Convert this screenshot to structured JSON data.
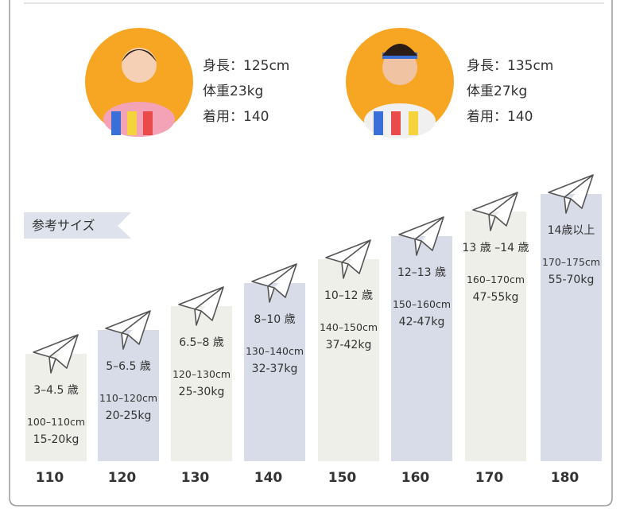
{
  "models": [
    {
      "height": "身長：125cm",
      "weight": "体重23kg",
      "size": "着用：140"
    },
    {
      "height": "身長：135cm",
      "weight": "体重27kg",
      "size": "着用：140"
    }
  ],
  "tag": "参考サイズ",
  "columns": [
    {
      "size": "110",
      "age": "3–4.5 歳",
      "height": "100–110cm",
      "weight": "15-20kg"
    },
    {
      "size": "120",
      "age": "5–6.5 歳",
      "height": "110–120cm",
      "weight": "20-25kg"
    },
    {
      "size": "130",
      "age": "6.5–8 歳",
      "height": "120–130cm",
      "weight": "25-30kg"
    },
    {
      "size": "140",
      "age": "8–10 歳",
      "height": "130–140cm",
      "weight": "32-37kg"
    },
    {
      "size": "150",
      "age": "10–12 歳",
      "height": "140–150cm",
      "weight": "37-42kg"
    },
    {
      "size": "160",
      "age": "12–13 歳",
      "height": "150–160cm",
      "weight": "42-47kg"
    },
    {
      "size": "170",
      "age": "13 歳 –14 歳",
      "height": "160–170cm",
      "weight": "47-55kg"
    },
    {
      "size": "180",
      "age": "14歳以上",
      "height": "170–175cm",
      "weight": "55-70kg"
    }
  ]
}
